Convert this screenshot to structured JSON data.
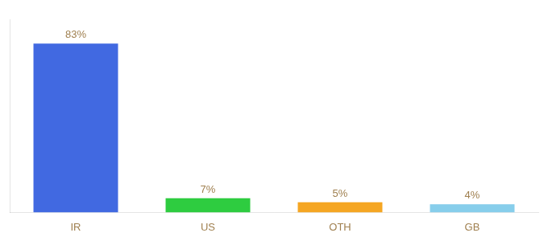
{
  "chart_data": {
    "type": "bar",
    "categories": [
      "IR",
      "US",
      "OTH",
      "GB"
    ],
    "values": [
      83,
      7,
      5,
      4
    ],
    "value_labels": [
      "83%",
      "7%",
      "5%",
      "4%"
    ],
    "colors": [
      "#4169e1",
      "#2ecc40",
      "#f5a623",
      "#87ceeb"
    ],
    "ylim": [
      0,
      95
    ],
    "grid": false,
    "data_labels": true,
    "tick_labels": "x"
  }
}
